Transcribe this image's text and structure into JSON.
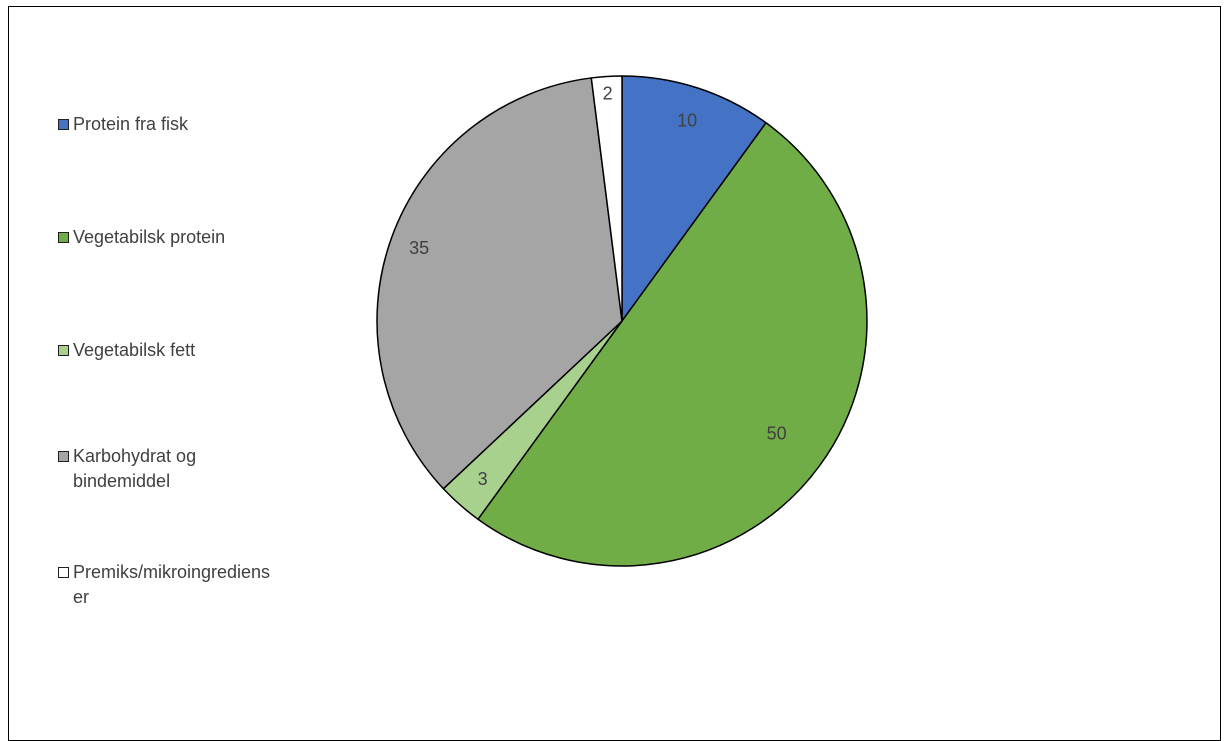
{
  "chart_data": {
    "type": "pie",
    "title": "",
    "series": [
      {
        "categories": [
          "Protein fra fisk",
          "Vegetabilsk protein",
          "Vegetabilsk fett",
          "Karbohydrat og bindemiddel",
          "Premiks/mikroingredienser"
        ],
        "values": [
          10,
          50,
          3,
          35,
          2
        ],
        "colors": [
          "#4472C4",
          "#70AD47",
          "#A9D18E",
          "#A5A5A5",
          "#FFFFFF"
        ]
      }
    ],
    "data_labels": [
      "10",
      "50",
      "3",
      "35",
      "2"
    ],
    "legend": {
      "placement": "left",
      "items": [
        {
          "label": "Protein fra fisk",
          "color": "#4472C4"
        },
        {
          "label": "Vegetabilsk protein",
          "color": "#70AD47"
        },
        {
          "label": "Vegetabilsk fett",
          "color": "#A9D18E"
        },
        {
          "label": "Karbohydrat og bindemiddel",
          "color": "#A5A5A5"
        },
        {
          "label": "Premiks/mikroingredienser",
          "color": "#FFFFFF"
        }
      ]
    }
  }
}
